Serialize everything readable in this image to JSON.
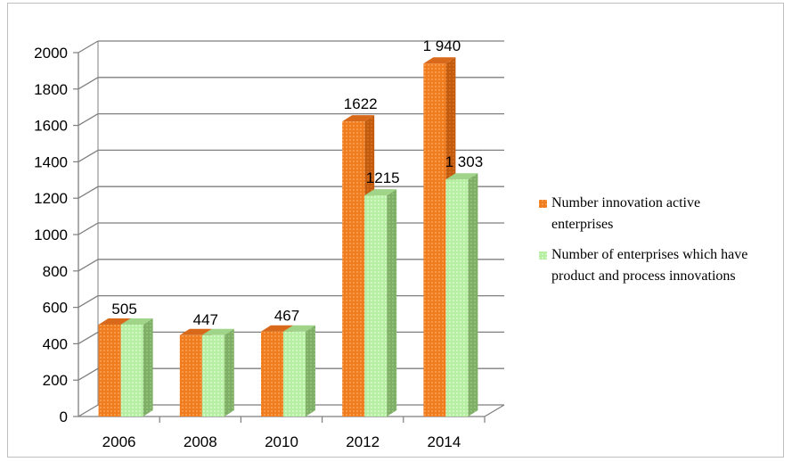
{
  "chart_data": {
    "type": "bar",
    "title": "",
    "xlabel": "",
    "ylabel": "",
    "ylim": [
      0,
      2000
    ],
    "y_ticks": [
      "0",
      "200",
      "400",
      "600",
      "800",
      "1000",
      "1200",
      "1400",
      "1600",
      "1800",
      "2000"
    ],
    "categories": [
      "2006",
      "2008",
      "2010",
      "2012",
      "2014"
    ],
    "series": [
      {
        "name": "Number innovation active enterprises",
        "values": [
          505,
          447,
          467,
          1622,
          1940
        ],
        "labels": [
          "505",
          "447",
          "467",
          "1622",
          "1 940"
        ],
        "color": "#f07c1e"
      },
      {
        "name": "Number of enterprises which have product and process innovations",
        "values": [
          505,
          447,
          467,
          1215,
          1303
        ],
        "labels": [
          "",
          "",
          "",
          "1215",
          "1 303"
        ],
        "color": "#b4f0a0"
      }
    ],
    "grid": true,
    "style": "3d-clustered-column",
    "legend_position": "right"
  },
  "legend": [
    {
      "lines": [
        "Number innovation active",
        "enterprises"
      ],
      "color": "#f07c1e"
    },
    {
      "lines": [
        "Number of enterprises which have",
        "product and process innovations"
      ],
      "color": "#b4f0a0"
    }
  ]
}
